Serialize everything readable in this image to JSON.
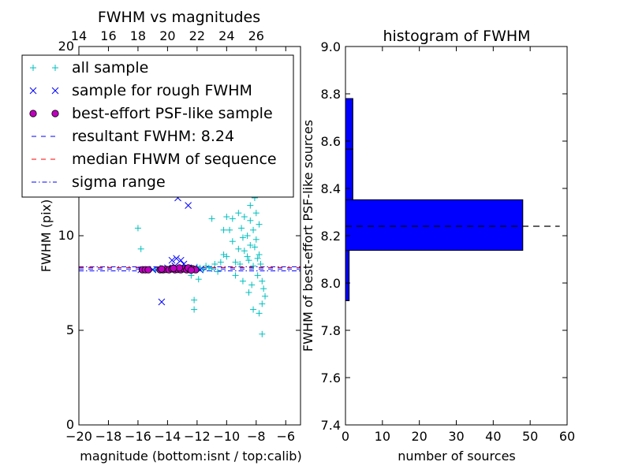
{
  "chart_data": [
    {
      "type": "scatter",
      "title": "FWHM vs magnitudes",
      "xlabel": "magnitude (bottom:isnt / top:calib)",
      "ylabel": "FWHM (pix)",
      "xlim": [
        -20,
        -5
      ],
      "ylim": [
        0,
        20
      ],
      "x_ticks": [
        -20,
        -18,
        -16,
        -14,
        -12,
        -10,
        -8,
        -6
      ],
      "x_tick_labels": [
        "−20",
        "−18",
        "−16",
        "−14",
        "−12",
        "−10",
        "−8",
        "−6"
      ],
      "y_ticks": [
        0,
        5,
        10,
        20
      ],
      "y_tick_labels": [
        "0",
        "5",
        "10",
        "20"
      ],
      "top_axis": {
        "ticks": [
          14,
          16,
          18,
          20,
          22,
          24,
          26
        ],
        "tick_labels": [
          "14",
          "16",
          "18",
          "20",
          "22",
          "24",
          "26"
        ],
        "offset": 34
      },
      "legend": {
        "placement": "upper-left",
        "entries": [
          {
            "label": "all sample",
            "marker": "+",
            "color": "#00bfbf"
          },
          {
            "label": "sample for rough FWHM",
            "marker": "x",
            "color": "#0000ff"
          },
          {
            "label": "best-effort PSF-like sample",
            "marker": "o",
            "color": "#bf00bf"
          },
          {
            "label": "resultant FWHM: 8.24",
            "line": "dashed",
            "color": "#0000ff"
          },
          {
            "label": "median FHWM of sequence",
            "line": "dashed",
            "color": "#ff0000"
          },
          {
            "label": "sigma range",
            "line": "dashdot",
            "color": "#0000ff"
          }
        ]
      },
      "series": [
        {
          "name": "all sample",
          "marker": "+",
          "color": "#00bfbf",
          "points": [
            [
              -16.0,
              10.4
            ],
            [
              -15.8,
              9.3
            ],
            [
              -15.4,
              8.2
            ],
            [
              -15.2,
              8.25
            ],
            [
              -14.8,
              8.2
            ],
            [
              -14.5,
              8.3
            ],
            [
              -14.2,
              8.2
            ],
            [
              -13.9,
              8.25
            ],
            [
              -13.6,
              8.2
            ],
            [
              -13.3,
              8.3
            ],
            [
              -13.0,
              8.2
            ],
            [
              -12.7,
              8.25
            ],
            [
              -12.4,
              8.3
            ],
            [
              -12.2,
              8.2
            ],
            [
              -12.0,
              8.35
            ],
            [
              -11.8,
              8.3
            ],
            [
              -11.6,
              8.2
            ],
            [
              -11.4,
              8.4
            ],
            [
              -11.2,
              8.3
            ],
            [
              -11.0,
              8.25
            ],
            [
              -10.8,
              8.5
            ],
            [
              -12.2,
              6.6
            ],
            [
              -12.2,
              6.1
            ],
            [
              -12.4,
              7.9
            ],
            [
              -11.9,
              7.7
            ],
            [
              -11.0,
              10.9
            ],
            [
              -10.6,
              8.1
            ],
            [
              -10.4,
              8.6
            ],
            [
              -10.2,
              9.0
            ],
            [
              -10.0,
              8.9
            ],
            [
              -10.2,
              10.3
            ],
            [
              -10.0,
              11.0
            ],
            [
              -9.8,
              10.3
            ],
            [
              -9.6,
              9.7
            ],
            [
              -9.4,
              8.6
            ],
            [
              -9.2,
              9.3
            ],
            [
              -9.0,
              10.4
            ],
            [
              -9.0,
              12.2
            ],
            [
              -8.8,
              9.2
            ],
            [
              -8.8,
              11.0
            ],
            [
              -8.6,
              12.5
            ],
            [
              -8.6,
              10.0
            ],
            [
              -8.5,
              8.7
            ],
            [
              -8.4,
              11.6
            ],
            [
              -8.4,
              9.5
            ],
            [
              -8.3,
              13.1
            ],
            [
              -8.2,
              10.3
            ],
            [
              -8.2,
              8.4
            ],
            [
              -8.1,
              12.0
            ],
            [
              -8.0,
              9.8
            ],
            [
              -8.0,
              11.2
            ],
            [
              -7.9,
              7.9
            ],
            [
              -7.8,
              9.0
            ],
            [
              -7.8,
              10.6
            ],
            [
              -7.7,
              8.5
            ],
            [
              -7.6,
              7.6
            ],
            [
              -7.5,
              7.2
            ],
            [
              -7.4,
              6.8
            ],
            [
              -7.6,
              6.4
            ],
            [
              -7.8,
              5.9
            ],
            [
              -7.6,
              4.8
            ],
            [
              -8.2,
              6.1
            ],
            [
              -8.5,
              7.0
            ],
            [
              -9.4,
              7.9
            ],
            [
              -8.9,
              7.6
            ],
            [
              -8.3,
              7.4
            ],
            [
              -8.0,
              12.6
            ],
            [
              -8.7,
              13.2
            ],
            [
              -9.2,
              11.2
            ],
            [
              -9.6,
              10.9
            ],
            [
              -8.4,
              10.8
            ],
            [
              -8.1,
              9.4
            ],
            [
              -7.9,
              8.8
            ],
            [
              -8.6,
              8.9
            ],
            [
              -9.1,
              8.5
            ],
            [
              -8.9,
              9.9
            ],
            [
              -9.3,
              12.6
            ],
            [
              -8.2,
              12.9
            ]
          ]
        },
        {
          "name": "sample for rough FWHM",
          "marker": "x",
          "color": "#0000ff",
          "points": [
            [
              -14.4,
              6.5
            ],
            [
              -13.3,
              12.0
            ],
            [
              -12.6,
              11.6
            ],
            [
              -13.7,
              8.7
            ],
            [
              -13.4,
              8.8
            ],
            [
              -13.1,
              8.7
            ],
            [
              -12.9,
              8.5
            ],
            [
              -13.5,
              8.4
            ],
            [
              -14.0,
              8.3
            ],
            [
              -12.6,
              8.3
            ],
            [
              -12.2,
              8.3
            ],
            [
              -15.0,
              8.2
            ],
            [
              -15.8,
              8.2
            ],
            [
              -13.0,
              8.2
            ],
            [
              -11.8,
              8.2
            ]
          ]
        },
        {
          "name": "best-effort PSF-like sample",
          "marker": "o",
          "color": "#bf00bf",
          "points": [
            [
              -15.7,
              8.2
            ],
            [
              -15.5,
              8.2
            ],
            [
              -15.3,
              8.2
            ],
            [
              -14.5,
              8.2
            ],
            [
              -14.3,
              8.2
            ],
            [
              -14.1,
              8.22
            ],
            [
              -13.9,
              8.2
            ],
            [
              -13.7,
              8.25
            ],
            [
              -13.5,
              8.2
            ],
            [
              -13.3,
              8.22
            ],
            [
              -13.1,
              8.2
            ],
            [
              -12.9,
              8.25
            ],
            [
              -12.7,
              8.2
            ],
            [
              -12.5,
              8.22
            ],
            [
              -12.3,
              8.25
            ],
            [
              -12.1,
              8.2
            ],
            [
              -13.2,
              8.3
            ],
            [
              -13.6,
              8.28
            ],
            [
              -12.6,
              8.3
            ],
            [
              -14.4,
              8.24
            ],
            [
              -12.4,
              8.18
            ]
          ]
        }
      ],
      "hlines": [
        {
          "name": "resultant FWHM: 8.24",
          "y": 8.24,
          "color": "#0000ff",
          "style": "dashed"
        },
        {
          "name": "median FHWM of sequence",
          "y": 8.31,
          "color": "#ff0000",
          "style": "dashed"
        },
        {
          "name": "sigma range",
          "y": 8.14,
          "color": "#0000ff",
          "style": "dashdot"
        },
        {
          "name": "sigma range",
          "y": 8.36,
          "color": "#0000ff",
          "style": "dashdot"
        }
      ]
    },
    {
      "type": "bar",
      "orientation": "horizontal",
      "title": "histogram of FWHM",
      "xlabel": "number of sources",
      "ylabel": "FWHM of best-effort PSF-like sources",
      "xlim": [
        0,
        60
      ],
      "ylim": [
        7.4,
        9.0
      ],
      "x_ticks": [
        0,
        10,
        20,
        30,
        40,
        50,
        60
      ],
      "x_tick_labels": [
        "0",
        "10",
        "20",
        "30",
        "40",
        "50",
        "60"
      ],
      "y_ticks": [
        7.4,
        7.6,
        7.8,
        8.0,
        8.2,
        8.4,
        8.6,
        8.8,
        9.0
      ],
      "y_tick_labels": [
        "7.4",
        "7.6",
        "7.8",
        "8.0",
        "8.2",
        "8.4",
        "8.6",
        "8.8",
        "9.0"
      ],
      "bar_color": "#0000ff",
      "bins": [
        {
          "y0": 7.925,
          "y1": 8.138,
          "count": 1
        },
        {
          "y0": 8.138,
          "y1": 8.352,
          "count": 48
        },
        {
          "y0": 8.352,
          "y1": 8.566,
          "count": 2
        },
        {
          "y0": 8.566,
          "y1": 8.78,
          "count": 2
        }
      ],
      "hline": {
        "y": 8.24,
        "style": "dashed",
        "color": "#000000",
        "x_end": 58
      }
    }
  ]
}
